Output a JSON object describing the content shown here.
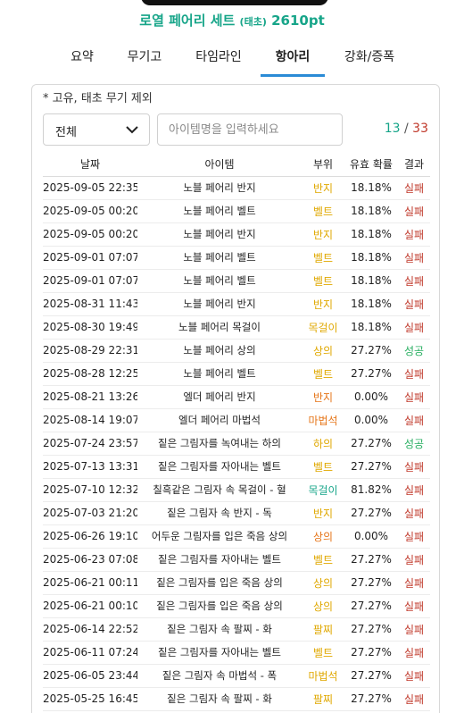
{
  "header": {
    "title": "로열 페어리 세트",
    "tier": "(태초)",
    "points": "2610pt"
  },
  "tabs": [
    {
      "label": "요약"
    },
    {
      "label": "무기고"
    },
    {
      "label": "타임라인"
    },
    {
      "label": "항아리",
      "active": true
    },
    {
      "label": "강화/증폭"
    }
  ],
  "panel": {
    "note": "* 고유, 태초 무기 제외",
    "filter": {
      "selected": "전체"
    },
    "search": {
      "placeholder": "아이템명을 입력하세요",
      "value": ""
    },
    "count": {
      "current": "13",
      "separator": "/",
      "total": "33"
    }
  },
  "colors": {
    "accent": "#17a589",
    "tab_underline": "#2a8bd6",
    "fail": "#c0392b",
    "success": "#27ae60",
    "part_gold": "#e0a800",
    "part_orange": "#e6761a"
  },
  "table": {
    "headers": [
      "날짜",
      "아이템",
      "부위",
      "유효 확률",
      "결과"
    ],
    "rows": [
      {
        "date": "2025-09-05 22:35",
        "item": "노블 페어리 반지",
        "part": "반지",
        "part_color": "gold",
        "rate": "18.18%",
        "result": "실패"
      },
      {
        "date": "2025-09-05 00:20",
        "item": "노블 페어리 벨트",
        "part": "벨트",
        "part_color": "gold",
        "rate": "18.18%",
        "result": "실패"
      },
      {
        "date": "2025-09-05 00:20",
        "item": "노블 페어리 반지",
        "part": "반지",
        "part_color": "gold",
        "rate": "18.18%",
        "result": "실패"
      },
      {
        "date": "2025-09-01 07:07",
        "item": "노블 페어리 벨트",
        "part": "벨트",
        "part_color": "gold",
        "rate": "18.18%",
        "result": "실패"
      },
      {
        "date": "2025-09-01 07:07",
        "item": "노블 페어리 벨트",
        "part": "벨트",
        "part_color": "gold",
        "rate": "18.18%",
        "result": "실패"
      },
      {
        "date": "2025-08-31 11:43",
        "item": "노블 페어리 반지",
        "part": "반지",
        "part_color": "gold",
        "rate": "18.18%",
        "result": "실패"
      },
      {
        "date": "2025-08-30 19:49",
        "item": "노블 페어리 목걸이",
        "part": "목걸이",
        "part_color": "gold",
        "rate": "18.18%",
        "result": "실패"
      },
      {
        "date": "2025-08-29 22:31",
        "item": "노블 페어리 상의",
        "part": "상의",
        "part_color": "gold",
        "rate": "27.27%",
        "result": "성공"
      },
      {
        "date": "2025-08-28 12:25",
        "item": "노블 페어리 벨트",
        "part": "벨트",
        "part_color": "gold",
        "rate": "27.27%",
        "result": "실패"
      },
      {
        "date": "2025-08-21 13:26",
        "item": "엘더 페어리 반지",
        "part": "반지",
        "part_color": "orange",
        "rate": "0.00%",
        "result": "실패"
      },
      {
        "date": "2025-08-14 19:07",
        "item": "엘더 페어리 마법석",
        "part": "마법석",
        "part_color": "orange",
        "rate": "0.00%",
        "result": "실패"
      },
      {
        "date": "2025-07-24 23:57",
        "item": "짙은 그림자를 녹여내는 하의",
        "part": "하의",
        "part_color": "gold",
        "rate": "27.27%",
        "result": "성공"
      },
      {
        "date": "2025-07-13 13:31",
        "item": "짙은 그림자를 자아내는 벨트",
        "part": "벨트",
        "part_color": "gold",
        "rate": "27.27%",
        "result": "실패"
      },
      {
        "date": "2025-07-10 12:32",
        "item": "칠흑같은 그림자 속 목걸이 - 혈",
        "part": "목걸이",
        "part_color": "teal",
        "rate": "81.82%",
        "result": "실패"
      },
      {
        "date": "2025-07-03 21:20",
        "item": "짙은 그림자 속 반지 - 독",
        "part": "반지",
        "part_color": "gold",
        "rate": "27.27%",
        "result": "실패"
      },
      {
        "date": "2025-06-26 19:10",
        "item": "어두운 그림자를 입은 죽음 상의",
        "part": "상의",
        "part_color": "orange",
        "rate": "0.00%",
        "result": "실패"
      },
      {
        "date": "2025-06-23 07:08",
        "item": "짙은 그림자를 자아내는 벨트",
        "part": "벨트",
        "part_color": "gold",
        "rate": "27.27%",
        "result": "실패"
      },
      {
        "date": "2025-06-21 00:11",
        "item": "짙은 그림자를 입은 죽음 상의",
        "part": "상의",
        "part_color": "gold",
        "rate": "27.27%",
        "result": "실패"
      },
      {
        "date": "2025-06-21 00:10",
        "item": "짙은 그림자를 입은 죽음 상의",
        "part": "상의",
        "part_color": "gold",
        "rate": "27.27%",
        "result": "실패"
      },
      {
        "date": "2025-06-14 22:52",
        "item": "짙은 그림자 속 팔찌 - 화",
        "part": "팔찌",
        "part_color": "gold",
        "rate": "27.27%",
        "result": "실패"
      },
      {
        "date": "2025-06-11 07:24",
        "item": "짙은 그림자를 자아내는 벨트",
        "part": "벨트",
        "part_color": "gold",
        "rate": "27.27%",
        "result": "실패"
      },
      {
        "date": "2025-06-05 23:44",
        "item": "짙은 그림자 속 마법석 - 폭",
        "part": "마법석",
        "part_color": "gold",
        "rate": "27.27%",
        "result": "실패"
      },
      {
        "date": "2025-05-25 16:45",
        "item": "짙은 그림자 속 팔찌 - 화",
        "part": "팔찌",
        "part_color": "gold",
        "rate": "27.27%",
        "result": "실패"
      }
    ]
  }
}
